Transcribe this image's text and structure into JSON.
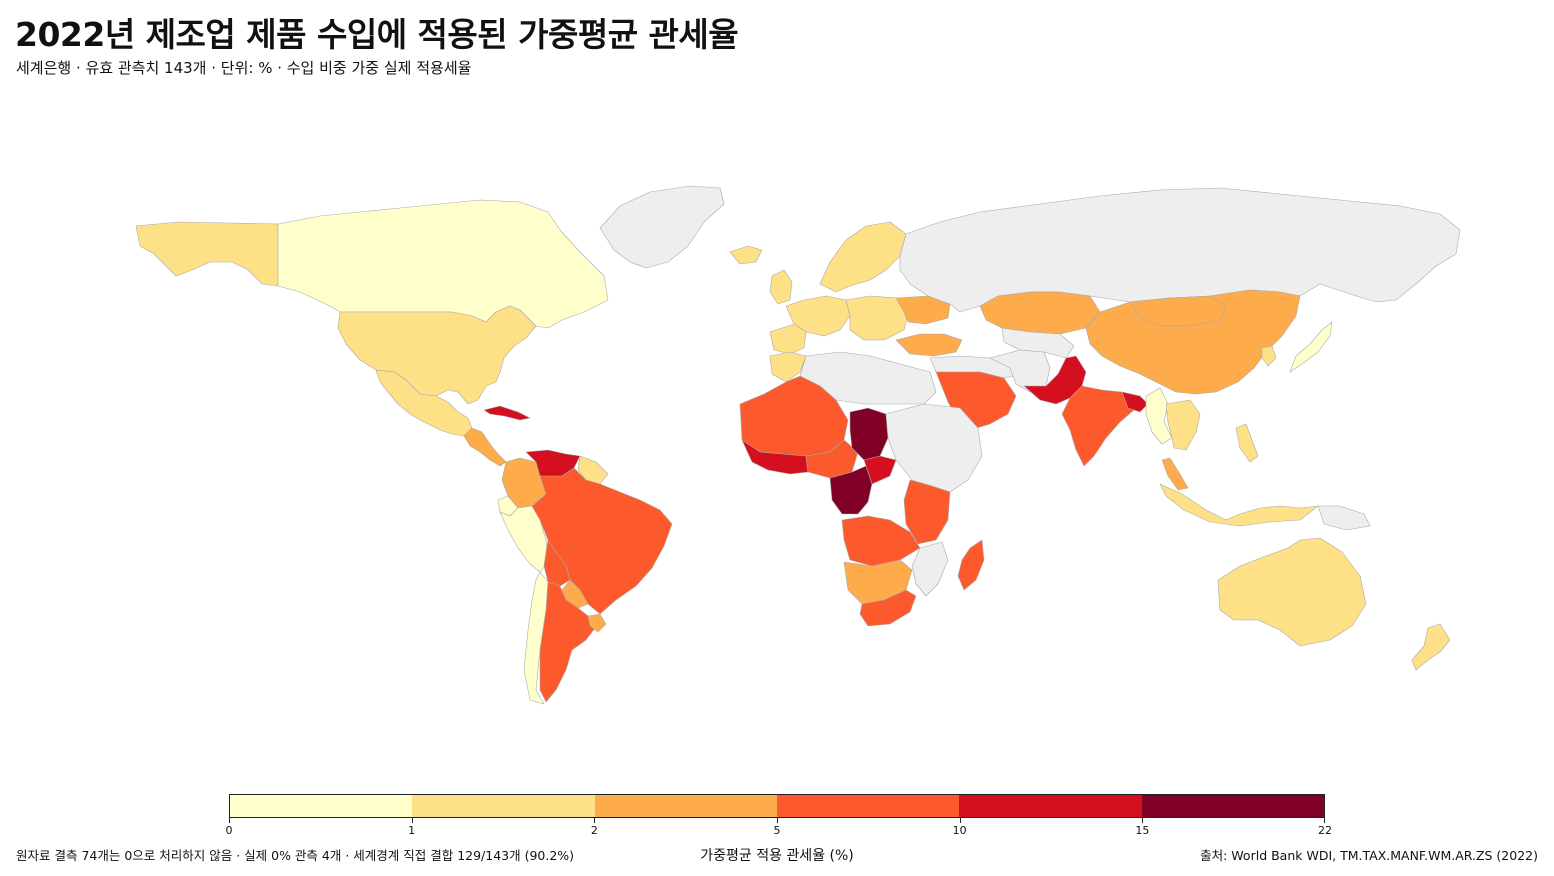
{
  "header": {
    "title": "2022년 제조업 제품 수입에 적용된 가중평균 관세율",
    "subtitle": "세계은행 · 유효 관측치 143개 · 단위: % · 수입 비중 가중 실제 적용세율"
  },
  "legend": {
    "title": "가중평균 적용 관세율 (%)",
    "breaks": [
      "0",
      "1",
      "2",
      "5",
      "10",
      "15",
      "22"
    ],
    "colors": [
      "#ffffcc",
      "#fee087",
      "#fdab4b",
      "#fc5a2d",
      "#d41020",
      "#800026"
    ]
  },
  "footer": {
    "note": "원자료 결측 74개는 0으로 처리하지 않음 · 실제 0% 관측 4개 · 세계경계 직접 결합 129/143개 (90.2%)",
    "source": "출처: World Bank WDI, TM.TAX.MANF.WM.AR.ZS (2022)"
  },
  "map": {
    "no_data_color": "#eeeeee",
    "border_color": "#aaaaaa",
    "regions": [
      {
        "name": "Alaska",
        "bin": 1
      },
      {
        "name": "Canada",
        "bin": 0
      },
      {
        "name": "Greenland",
        "bin": -1
      },
      {
        "name": "United States",
        "bin": 1
      },
      {
        "name": "Mexico",
        "bin": 1
      },
      {
        "name": "Central America",
        "bin": 2
      },
      {
        "name": "Cuba",
        "bin": 4
      },
      {
        "name": "Colombia",
        "bin": 2
      },
      {
        "name": "Venezuela",
        "bin": 4
      },
      {
        "name": "Guianas",
        "bin": 1
      },
      {
        "name": "Ecuador",
        "bin": 0
      },
      {
        "name": "Peru",
        "bin": 0
      },
      {
        "name": "Brazil",
        "bin": 3
      },
      {
        "name": "Bolivia",
        "bin": 3
      },
      {
        "name": "Paraguay",
        "bin": 2
      },
      {
        "name": "Chile",
        "bin": 0
      },
      {
        "name": "Argentina",
        "bin": 3
      },
      {
        "name": "Uruguay",
        "bin": 2
      },
      {
        "name": "Iceland",
        "bin": 1
      },
      {
        "name": "United Kingdom",
        "bin": 1
      },
      {
        "name": "Scandinavia",
        "bin": 1
      },
      {
        "name": "Western Europe",
        "bin": 1
      },
      {
        "name": "Iberia",
        "bin": 1
      },
      {
        "name": "Eastern Europe",
        "bin": 1
      },
      {
        "name": "Ukraine",
        "bin": 2
      },
      {
        "name": "Turkey",
        "bin": 2
      },
      {
        "name": "Russia",
        "bin": -1
      },
      {
        "name": "Kazakhstan",
        "bin": 2
      },
      {
        "name": "China",
        "bin": 2
      },
      {
        "name": "Mongolia",
        "bin": 2
      },
      {
        "name": "Japan",
        "bin": 0
      },
      {
        "name": "Korea",
        "bin": 1
      },
      {
        "name": "Middle East",
        "bin": -1
      },
      {
        "name": "Saudi Arabia",
        "bin": 3
      },
      {
        "name": "Iran",
        "bin": -1
      },
      {
        "name": "Central Asia",
        "bin": -1
      },
      {
        "name": "Pakistan",
        "bin": 4
      },
      {
        "name": "India",
        "bin": 3
      },
      {
        "name": "Bangladesh",
        "bin": 4
      },
      {
        "name": "Myanmar",
        "bin": 0
      },
      {
        "name": "Indochina",
        "bin": 1
      },
      {
        "name": "Malay Peninsula",
        "bin": 2
      },
      {
        "name": "Indonesia",
        "bin": 1
      },
      {
        "name": "Philippines",
        "bin": 1
      },
      {
        "name": "Papua New Guinea",
        "bin": -1
      },
      {
        "name": "Australia",
        "bin": 1
      },
      {
        "name": "New Zealand",
        "bin": 1
      },
      {
        "name": "Morocco",
        "bin": 1
      },
      {
        "name": "North Africa",
        "bin": -1
      },
      {
        "name": "Sahel West",
        "bin": 3
      },
      {
        "name": "Guinea Coast",
        "bin": 4
      },
      {
        "name": "Nigeria",
        "bin": 3
      },
      {
        "name": "Chad",
        "bin": 5
      },
      {
        "name": "Central Africa",
        "bin": 5
      },
      {
        "name": "CAR",
        "bin": 4
      },
      {
        "name": "Sudan / Horn",
        "bin": -1
      },
      {
        "name": "East Africa",
        "bin": 3
      },
      {
        "name": "Angola / Zambia",
        "bin": 3
      },
      {
        "name": "Mozambique",
        "bin": -1
      },
      {
        "name": "Namibia / Botswana",
        "bin": 2
      },
      {
        "name": "South Africa",
        "bin": 3
      },
      {
        "name": "Madagascar",
        "bin": 3
      }
    ]
  }
}
